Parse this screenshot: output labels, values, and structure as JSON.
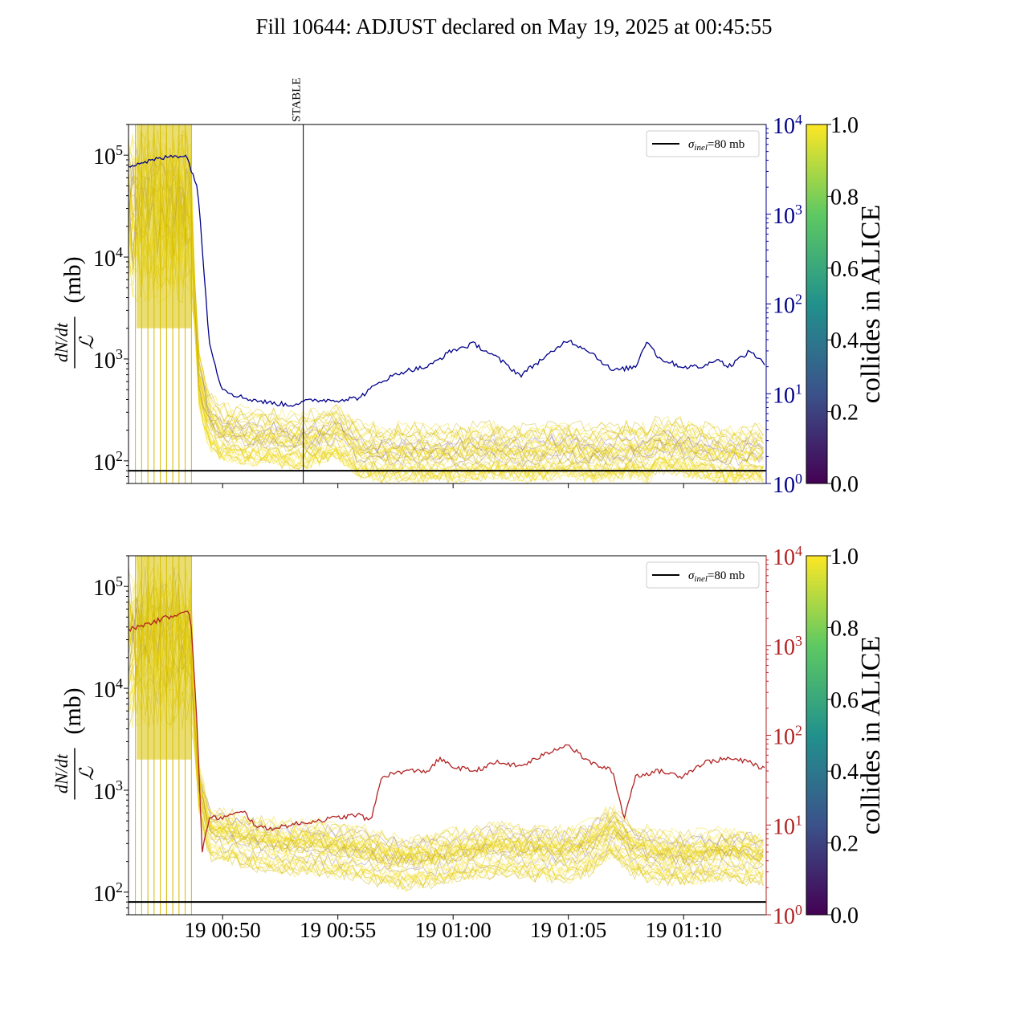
{
  "figure": {
    "title": "Fill 10644: ADJUST declared on May 19, 2025 at 00:45:55"
  },
  "chart_data": [
    {
      "type": "line",
      "panel": "top",
      "title": "",
      "xlabel": "",
      "ylabel": "dN/dt / ℒ (mb)",
      "ylabel_parts": {
        "numerator": "dN/dt",
        "denominator": "ℒ",
        "unit": "(mb)"
      },
      "yscale": "log",
      "ylim": [
        60,
        200000
      ],
      "y_ticks": [
        {
          "base": "10",
          "exp": "2",
          "value": 100
        },
        {
          "base": "10",
          "exp": "3",
          "value": 1000
        },
        {
          "base": "10",
          "exp": "4",
          "value": 10000
        },
        {
          "base": "10",
          "exp": "5",
          "value": 100000
        }
      ],
      "x_range": [
        "2025-05-19 00:45:55",
        "2025-05-19 01:13:35"
      ],
      "x_tick_labels_visible": false,
      "vertical_marker": {
        "label": "STABLE",
        "x": "2025-05-19 00:53:30"
      },
      "reference_line": {
        "label_symbol": "σ",
        "label_sub": "inel",
        "label_rest": "=80 mb",
        "y": 80,
        "color": "#000000"
      },
      "legend": {
        "position": "upper-right"
      },
      "secondary_axis": {
        "yscale": "log",
        "ylim": [
          1,
          10000
        ],
        "color": "#00008b",
        "ticks": [
          {
            "base": "10",
            "exp": "0",
            "value": 1
          },
          {
            "base": "10",
            "exp": "1",
            "value": 10
          },
          {
            "base": "10",
            "exp": "2",
            "value": 100
          },
          {
            "base": "10",
            "exp": "3",
            "value": 1000
          },
          {
            "base": "10",
            "exp": "4",
            "value": 10000
          }
        ]
      },
      "secondary_series": {
        "color": "#00008b",
        "x_min": [
          0.0,
          2.0,
          2.5,
          3.0,
          3.5,
          4.0,
          4.5,
          5.0,
          6.0,
          7.0,
          8.0,
          9.0,
          10.0,
          11.0,
          12.0,
          13.0,
          14.0,
          15.0,
          16.0,
          17.0,
          18.0,
          18.5,
          19.0,
          20.0,
          21.0,
          22.0,
          22.5,
          23.0,
          24.0,
          25.0,
          25.5,
          26.0,
          27.0,
          27.7
        ],
        "y": [
          3500,
          4500,
          4500,
          2000,
          40,
          12,
          10,
          9,
          8,
          7.5,
          8.5,
          8.5,
          9,
          14,
          18,
          20,
          30,
          36,
          25,
          16,
          25,
          30,
          40,
          30,
          18,
          20,
          40,
          25,
          20,
          20,
          25,
          20,
          30,
          20
        ]
      },
      "bundle": {
        "colormap": "viridis",
        "description_value": "collides in ALICE",
        "median_x_min": [
          0.0,
          2.7,
          3.0,
          3.5,
          4.0,
          5.0,
          6.0,
          7.0,
          8.0,
          9.0,
          10.0,
          11.0,
          12.0,
          13.0,
          14.0,
          15.0,
          16.0,
          17.0,
          18.0,
          19.0,
          20.0,
          21.0,
          22.0,
          22.5,
          23.0,
          24.0,
          25.0,
          26.0,
          27.0,
          27.7
        ],
        "median_y": [
          30000,
          30000,
          800,
          250,
          200,
          180,
          175,
          160,
          165,
          200,
          130,
          120,
          125,
          120,
          120,
          125,
          130,
          120,
          125,
          135,
          120,
          125,
          130,
          120,
          150,
          140,
          125,
          115,
          120,
          120
        ]
      },
      "colorbar": {
        "label": "collides in ALICE",
        "range": [
          0.0,
          1.0
        ],
        "ticks": [
          "0.0",
          "0.2",
          "0.4",
          "0.6",
          "0.8",
          "1.0"
        ]
      }
    },
    {
      "type": "line",
      "panel": "bottom",
      "title": "",
      "xlabel": "",
      "ylabel": "dN/dt / ℒ (mb)",
      "ylabel_parts": {
        "numerator": "dN/dt",
        "denominator": "ℒ",
        "unit": "(mb)"
      },
      "yscale": "log",
      "ylim": [
        60,
        200000
      ],
      "y_ticks": [
        {
          "base": "10",
          "exp": "2",
          "value": 100
        },
        {
          "base": "10",
          "exp": "3",
          "value": 1000
        },
        {
          "base": "10",
          "exp": "4",
          "value": 10000
        },
        {
          "base": "10",
          "exp": "5",
          "value": 100000
        }
      ],
      "x_range": [
        "2025-05-19 00:45:55",
        "2025-05-19 01:13:35"
      ],
      "x_ticks": [
        {
          "label": "19 00:50",
          "x": "2025-05-19 00:50:00"
        },
        {
          "label": "19 00:55",
          "x": "2025-05-19 00:55:00"
        },
        {
          "label": "19 01:00",
          "x": "2025-05-19 01:00:00"
        },
        {
          "label": "19 01:05",
          "x": "2025-05-19 01:05:00"
        },
        {
          "label": "19 01:10",
          "x": "2025-05-19 01:10:00"
        }
      ],
      "reference_line": {
        "label_symbol": "σ",
        "label_sub": "inel",
        "label_rest": "=80 mb",
        "y": 80,
        "color": "#000000"
      },
      "legend": {
        "position": "upper-right"
      },
      "secondary_axis": {
        "yscale": "log",
        "ylim": [
          1,
          10000
        ],
        "color": "#b22222",
        "ticks": [
          {
            "base": "10",
            "exp": "0",
            "value": 1
          },
          {
            "base": "10",
            "exp": "1",
            "value": 10
          },
          {
            "base": "10",
            "exp": "2",
            "value": 100
          },
          {
            "base": "10",
            "exp": "3",
            "value": 1000
          },
          {
            "base": "10",
            "exp": "4",
            "value": 10000
          }
        ]
      },
      "secondary_series": {
        "color": "#b22222",
        "x_min": [
          0.0,
          1.0,
          2.0,
          2.5,
          2.7,
          3.0,
          3.2,
          3.5,
          4.0,
          5.0,
          5.5,
          6.0,
          7.0,
          8.0,
          9.0,
          10.0,
          10.5,
          11.0,
          12.0,
          13.0,
          13.5,
          14.0,
          15.0,
          16.0,
          17.0,
          18.0,
          19.0,
          20.0,
          21.0,
          21.5,
          22.0,
          23.0,
          24.0,
          25.0,
          26.0,
          27.0,
          27.7
        ],
        "y": [
          1500,
          1800,
          2200,
          2500,
          2000,
          100,
          5,
          12,
          12,
          14,
          10,
          9,
          10,
          11,
          12,
          13,
          11,
          35,
          40,
          40,
          55,
          45,
          40,
          50,
          45,
          60,
          80,
          50,
          40,
          12,
          35,
          40,
          35,
          50,
          55,
          50,
          40
        ]
      },
      "bundle": {
        "colormap": "viridis",
        "description_value": "collides in ALICE",
        "median_x_min": [
          0.0,
          2.7,
          3.0,
          3.5,
          4.0,
          5.0,
          6.0,
          7.0,
          8.0,
          9.0,
          10.0,
          11.0,
          12.0,
          13.0,
          14.0,
          15.0,
          16.0,
          17.0,
          18.0,
          19.0,
          20.0,
          21.0,
          22.0,
          23.0,
          24.0,
          25.0,
          26.0,
          27.0,
          27.7
        ],
        "median_y": [
          30000,
          30000,
          1200,
          400,
          380,
          330,
          300,
          280,
          290,
          260,
          250,
          220,
          200,
          210,
          230,
          250,
          270,
          260,
          250,
          240,
          280,
          400,
          260,
          230,
          220,
          230,
          240,
          230,
          220
        ]
      },
      "colorbar": {
        "label": "collides in ALICE",
        "range": [
          0.0,
          1.0
        ],
        "ticks": [
          "0.0",
          "0.2",
          "0.4",
          "0.6",
          "0.8",
          "1.0"
        ]
      }
    }
  ]
}
